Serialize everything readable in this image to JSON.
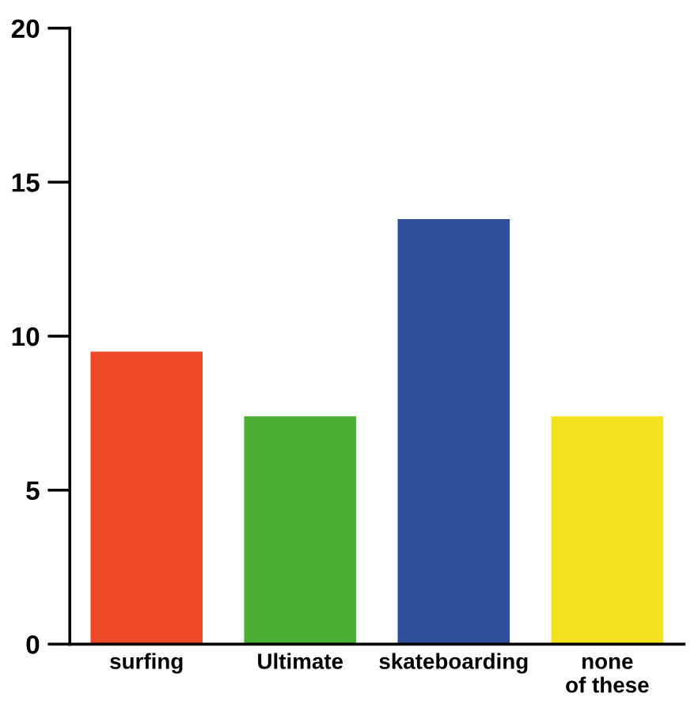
{
  "chart_data": {
    "type": "bar",
    "categories": [
      "surfing",
      "Ultimate",
      "skateboarding",
      "none\nof these"
    ],
    "values": [
      9.5,
      7.4,
      13.8,
      7.4
    ],
    "colors": [
      "#ee4a2a",
      "#4caf35",
      "#2f4f9a",
      "#f5e21e"
    ],
    "ylim": [
      0,
      20
    ],
    "yticks": [
      0,
      5,
      10,
      15,
      20
    ],
    "grid": false,
    "legend": false
  }
}
